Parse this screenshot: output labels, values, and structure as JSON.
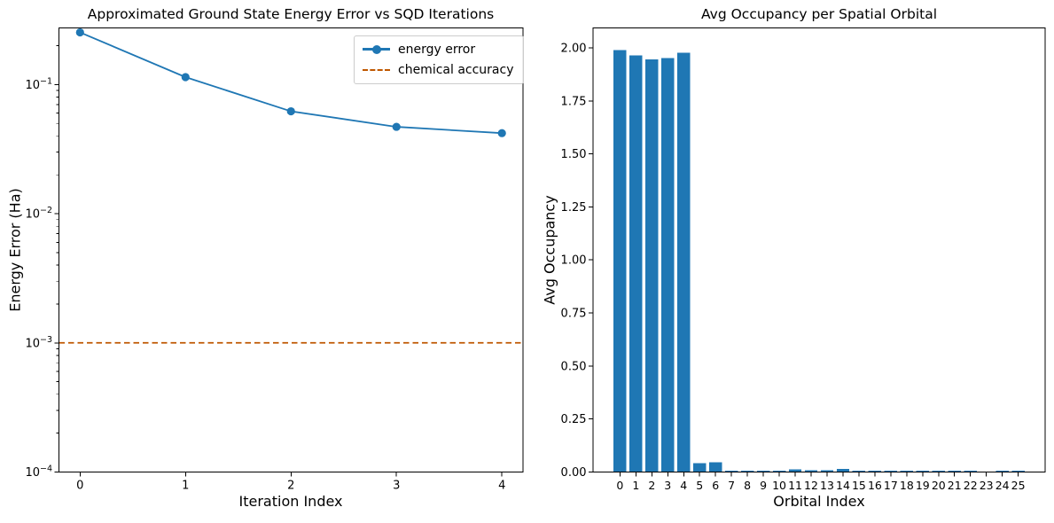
{
  "figure": {
    "background": "#ffffff",
    "text_color": "#000000",
    "spine_color": "#000000"
  },
  "chart_data": [
    {
      "type": "line",
      "title": "Approximated Ground State Energy Error vs SQD Iterations",
      "xlabel": "Iteration Index",
      "ylabel": "Energy Error (Ha)",
      "yscale": "log",
      "grid": false,
      "xlim": [
        -0.2,
        4.2
      ],
      "ylim": [
        0.0001,
        0.274
      ],
      "x": [
        0,
        1,
        2,
        3,
        4
      ],
      "xticklabels": [
        "0",
        "1",
        "2",
        "3",
        "4"
      ],
      "yticks": [
        0.1,
        0.01,
        0.001,
        0.0001
      ],
      "yticklabels": [
        {
          "base": "10",
          "sup": "−1"
        },
        {
          "base": "10",
          "sup": "−2"
        },
        {
          "base": "10",
          "sup": "−3"
        },
        {
          "base": "10",
          "sup": "−4"
        }
      ],
      "series": [
        {
          "name": "energy error",
          "color": "#1f77b4",
          "marker": "circle",
          "values": [
            0.253,
            0.114,
            0.062,
            0.047,
            0.042
          ]
        }
      ],
      "hline": {
        "label": "chemical accuracy",
        "value": 0.001,
        "color": "#BF5700",
        "linestyle": "dashed"
      },
      "legend_position": "upper right"
    },
    {
      "type": "bar",
      "title": "Avg Occupancy per Spatial Orbital",
      "xlabel": "Orbital Index",
      "ylabel": "Avg Occupancy",
      "grid": false,
      "bar_color": "#1f77b4",
      "bar_width": 0.8,
      "xlim": [
        -1.69,
        26.69
      ],
      "ylim": [
        0,
        2.094
      ],
      "categories": [
        "0",
        "1",
        "2",
        "3",
        "4",
        "5",
        "6",
        "7",
        "8",
        "9",
        "10",
        "11",
        "12",
        "13",
        "14",
        "15",
        "16",
        "17",
        "18",
        "19",
        "20",
        "21",
        "22",
        "23",
        "24",
        "25"
      ],
      "values": [
        1.99,
        1.965,
        1.945,
        1.951,
        1.976,
        0.042,
        0.046,
        0.006,
        0.006,
        0.006,
        0.006,
        0.013,
        0.009,
        0.008,
        0.015,
        0.006,
        0.006,
        0.006,
        0.006,
        0.006,
        0.006,
        0.006,
        0.006,
        0,
        0.006,
        0.006
      ],
      "yticks": [
        0,
        0.25,
        0.5,
        0.75,
        1.0,
        1.25,
        1.5,
        1.75,
        2.0
      ],
      "yticklabels": [
        "0.00",
        "0.25",
        "0.50",
        "0.75",
        "1.00",
        "1.25",
        "1.50",
        "1.75",
        "2.00"
      ]
    }
  ]
}
